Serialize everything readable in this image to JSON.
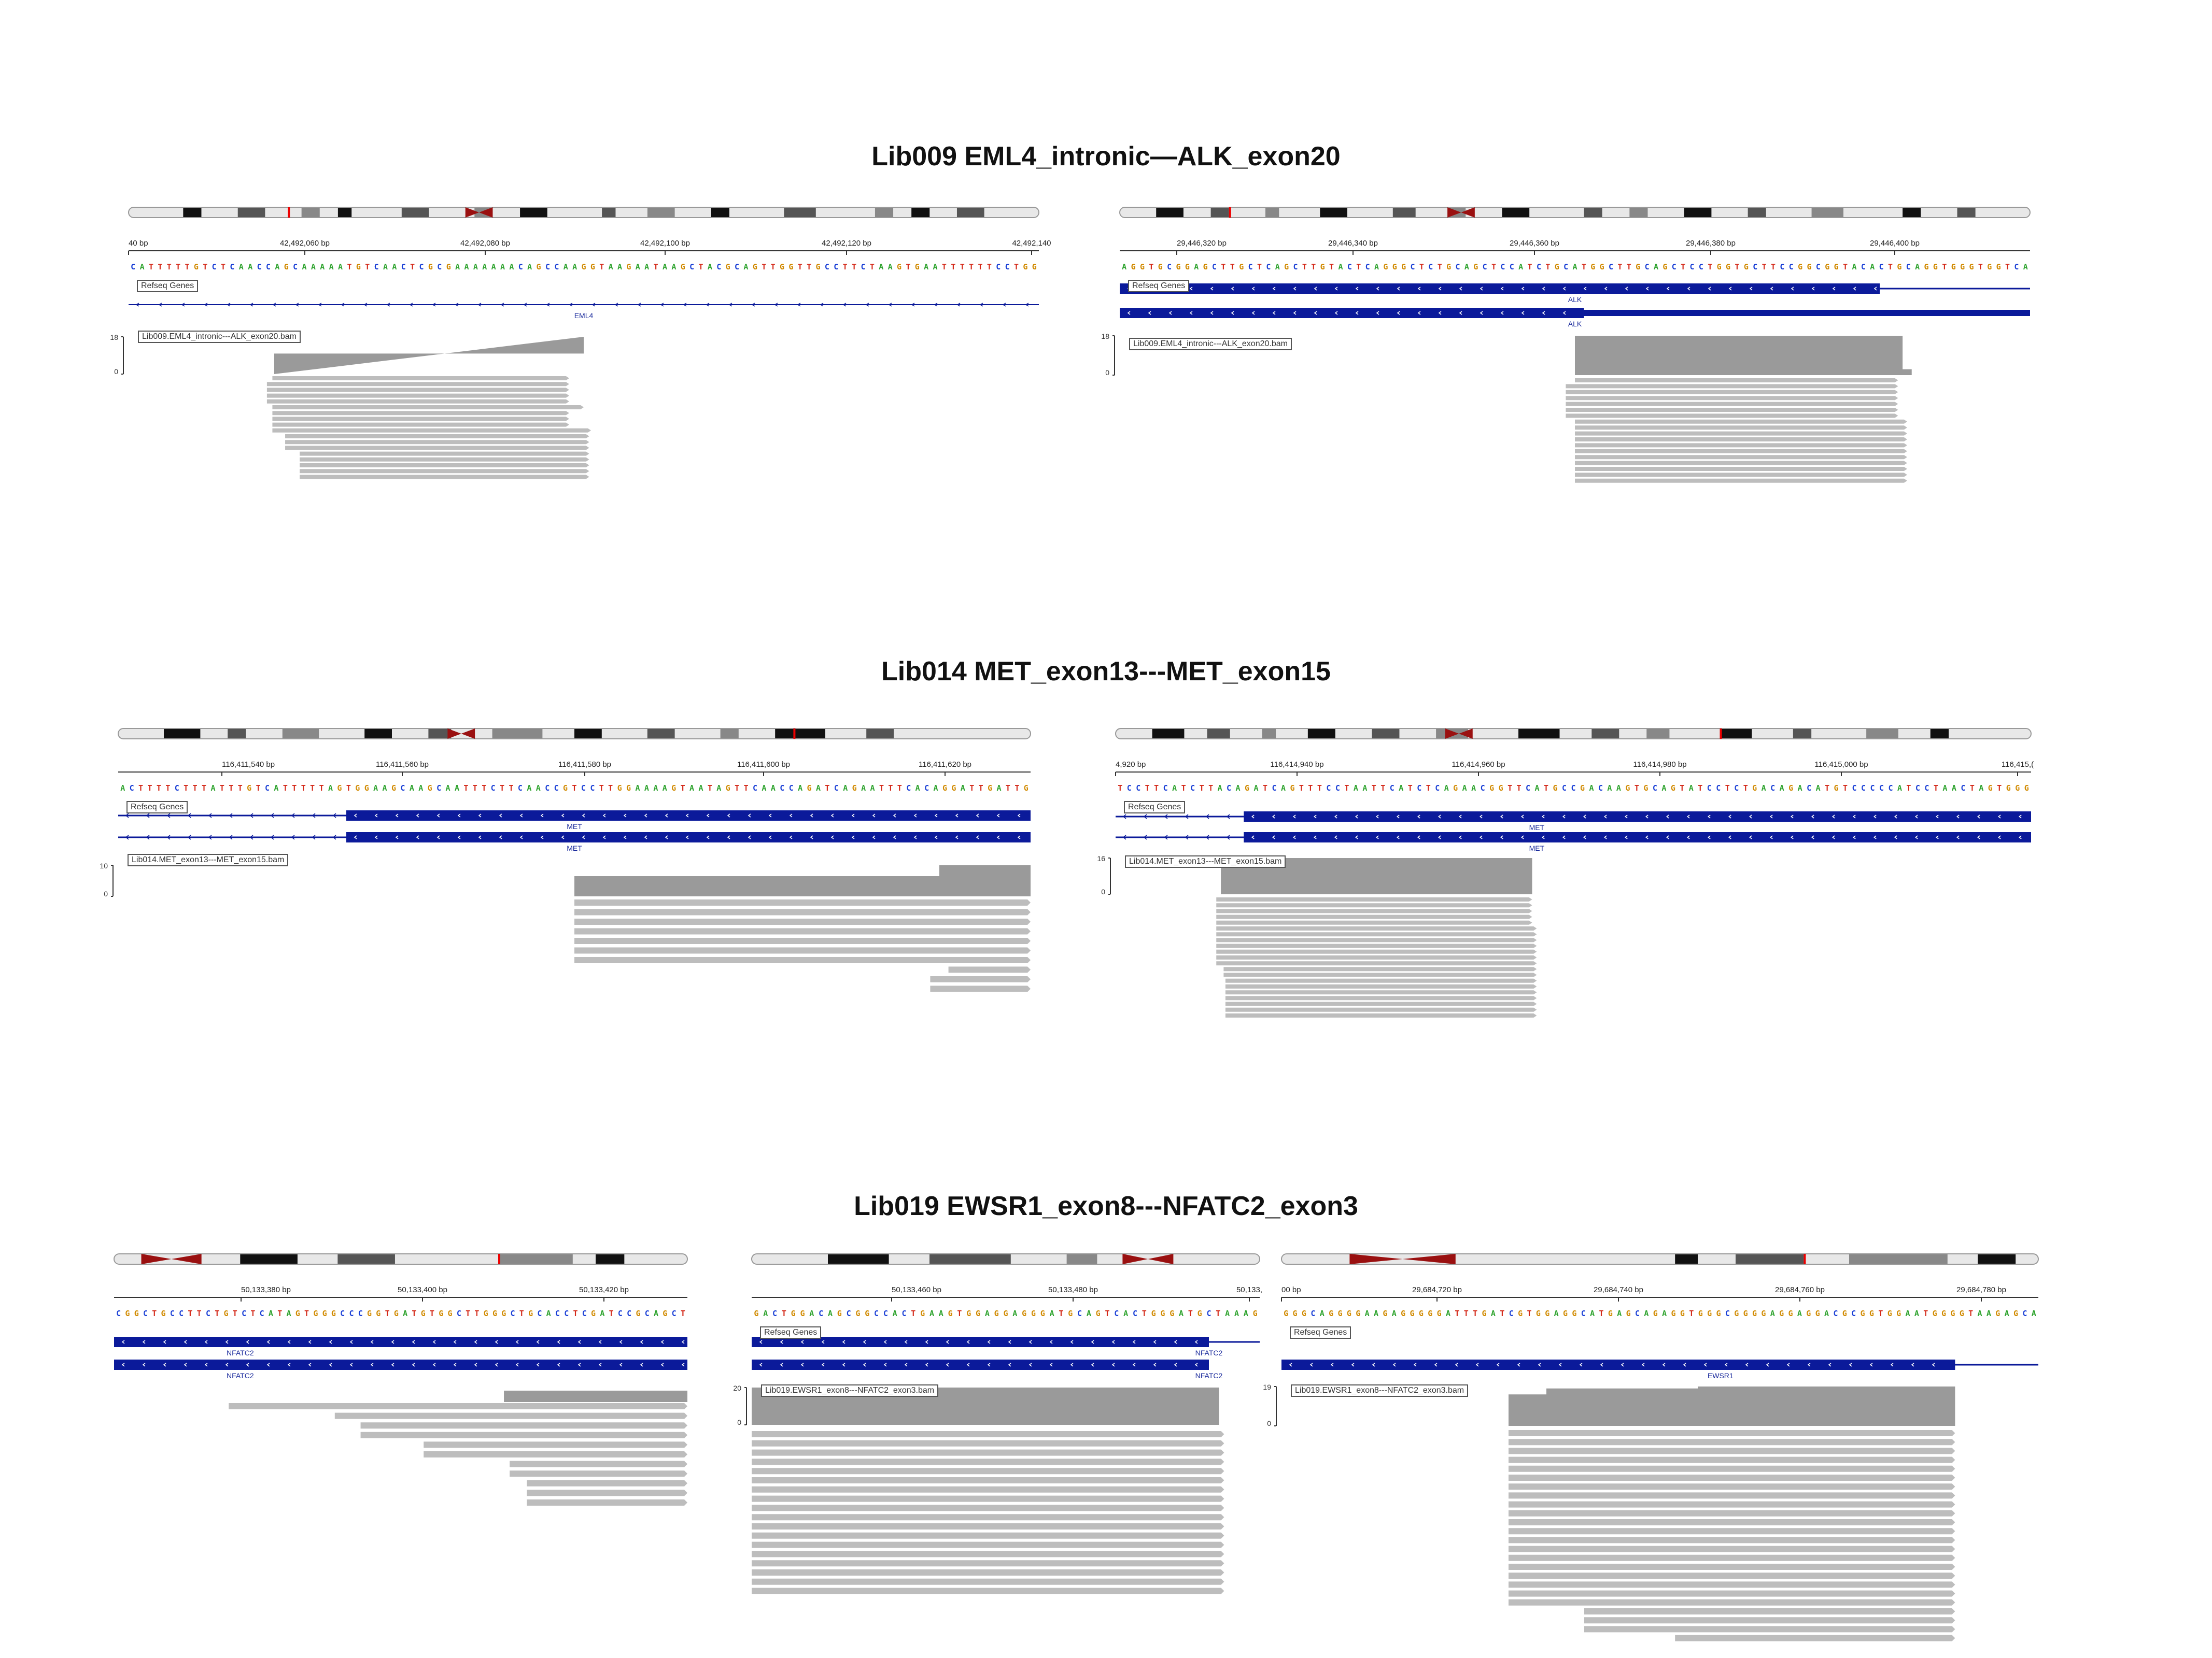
{
  "titles": [
    "Lib009 EML4_intronic—ALK_exon20",
    "Lib014 MET_exon13---MET_exon15",
    "Lib019 EWSR1_exon8---NFATC2_exon3"
  ],
  "panels": [
    {
      "ticks": [
        "40 bp",
        "42,492,060 bp",
        "42,492,080 bp",
        "42,492,100 bp",
        "42,492,120 bp",
        "42,492,140"
      ],
      "sequence": "CATTTTTGTCTCAACCAGCAAAAATGTCAACTCGCGAAAAAAACAGCCAAGGTAAGAATAAGCTACGCAGTTGGTTGCCTTCTAAGTGAATTTTTTCCTGG",
      "refseq_label": "Refseq Genes",
      "genes": [
        "EML4"
      ],
      "bam_label": "Lib009.EML4_intronic---ALK_exon20.bam",
      "cov_max": "18",
      "cov_min": "0"
    },
    {
      "ticks": [
        "29,446,320 bp",
        "29,446,340 bp",
        "29,446,360 bp",
        "29,446,380 bp",
        "29,446,400 bp"
      ],
      "sequence": "AGGTGCGGAGCTTGCTCAGCTTGTACTCAGGGCTCTGCAGCTCCATCTGCATGGCTTGCAGCTCCTGGTGCTTCCGGCGGTACACTGCAGGTGGGTGGTCA",
      "refseq_label": "Refseq Genes",
      "genes": [
        "ALK",
        "ALK"
      ],
      "bam_label": "Lib009.EML4_intronic---ALK_exon20.bam",
      "cov_max": "18",
      "cov_min": "0"
    },
    {
      "ticks": [
        "116,411,540 bp",
        "116,411,560 bp",
        "116,411,580 bp",
        "116,411,600 bp",
        "116,411,620 bp"
      ],
      "sequence": "ACTTTTCTTTATTTGTCATTTTTAGTGGAAGCAAGCAATTTCTTCAACCGTCCTTGGAAAAGTAATAGTTCAACCAGATCAGAATTTCACAGGATTGATTG",
      "refseq_label": "Refseq Genes",
      "genes": [
        "MET",
        "MET"
      ],
      "bam_label": "Lib014.MET_exon13---MET_exon15.bam",
      "cov_max": "10",
      "cov_min": "0"
    },
    {
      "ticks": [
        "4,920 bp",
        "116,414,940 bp",
        "116,414,960 bp",
        "116,414,980 bp",
        "116,415,000 bp",
        "116,415,("
      ],
      "sequence": "TCCTTCATCTTACAGATCAGTTTCCTAATTCATCTCAGAACGGTTCATGCCGACAAGTGCAGTATCCTCTGACAGACATGTCCCCCATCCTAACTAGTGGG",
      "refseq_label": "Refseq Genes",
      "genes": [
        "MET",
        "MET"
      ],
      "bam_label": "Lib014.MET_exon13---MET_exon15.bam",
      "cov_max": "16",
      "cov_min": "0"
    },
    {
      "ticks": [
        "50,133,380 bp",
        "50,133,400 bp",
        "50,133,420 bp"
      ],
      "sequence": "CGGCTGCCTTCTGTCTCATAGTGGGCCCGGTGATGTGGCTTGGGCTGCACCTCGATCCGCAGCT",
      "refseq_label": "",
      "genes": [
        "NFATC2",
        "NFATC2"
      ],
      "bam_label": "",
      "cov_max": "",
      "cov_min": ""
    },
    {
      "ticks": [
        "50,133,460 bp",
        "50,133,480 bp",
        "50,133,"
      ],
      "sequence": "GACTGGACAGCGGCCACTGAAGTGGAGGAGGGATGCAGTCACTGGGATGCTAAAG",
      "refseq_label": "Refseq Genes",
      "genes": [
        "NFATC2",
        "NFATC2"
      ],
      "bam_label": "Lib019.EWSR1_exon8---NFATC2_exon3.bam",
      "cov_max": "20",
      "cov_min": "0"
    },
    {
      "ticks": [
        "00 bp",
        "29,684,720 bp",
        "29,684,740 bp",
        "29,684,760 bp",
        "29,684,780 bp"
      ],
      "sequence": "GGGCAGGGGAAGAGGGGGATTTGATCGTGGAGGCATGAGCAGAGGTGGGCGGGGAGGAGGACGCGGTGGAATGGGGTAAGAGCA",
      "refseq_label": "Refseq Genes",
      "genes": [
        "EWSR1"
      ],
      "bam_label": "Lib019.EWSR1_exon8---NFATC2_exon3.bam",
      "cov_max": "19",
      "cov_min": "0"
    }
  ],
  "colors": {
    "A": "#2ea32e",
    "C": "#1a3fd6",
    "G": "#d18a00",
    "T": "#d42a1a",
    "gene": "#0b1a9a",
    "read": "#bdbdbd",
    "coverage": "#9a9a9a",
    "centromere": "#9a1010"
  }
}
